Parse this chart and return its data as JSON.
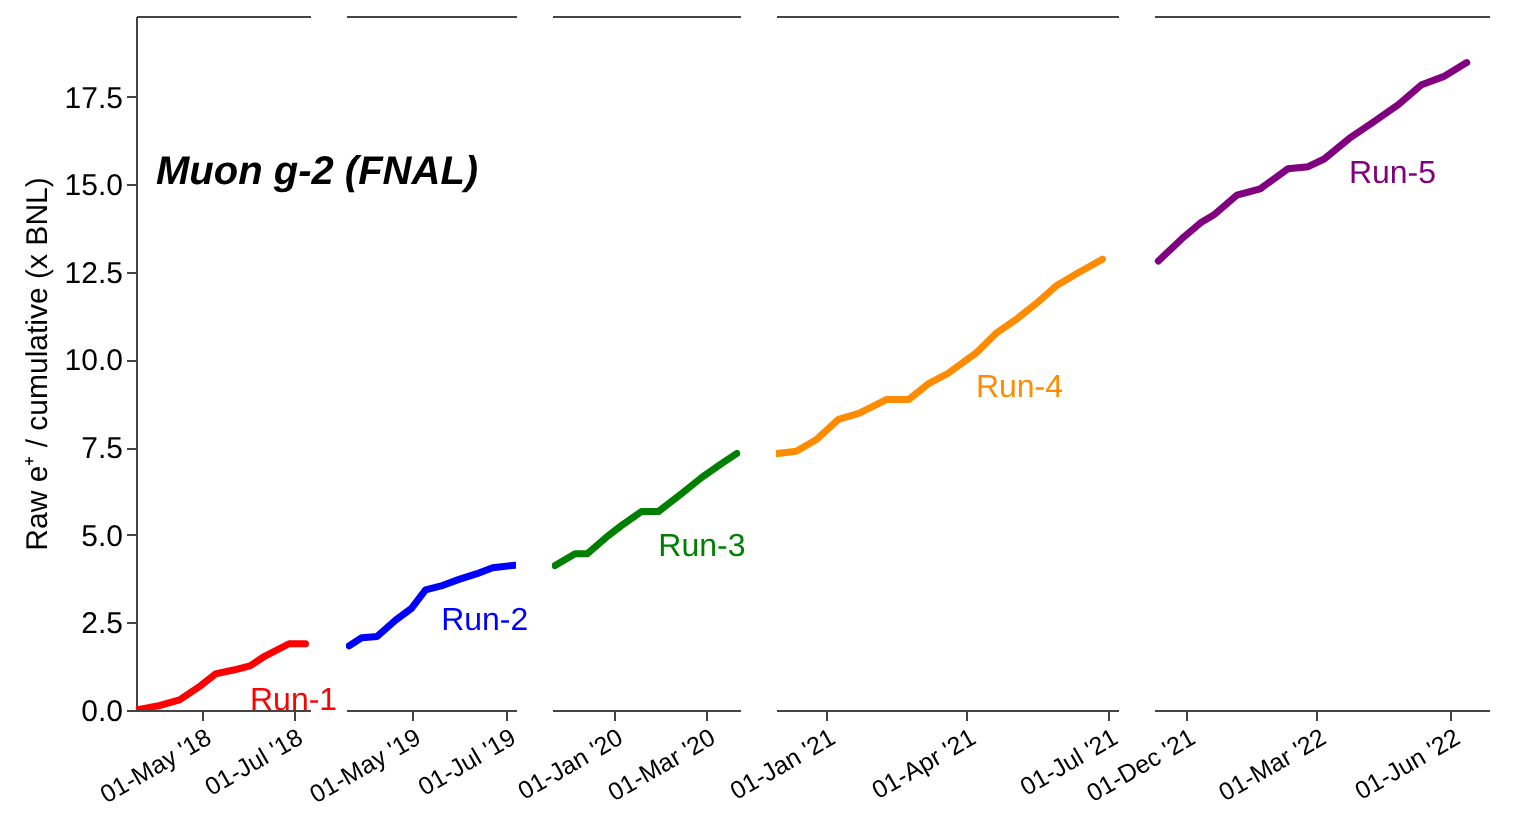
{
  "chart_data": [
    {
      "type": "line",
      "title": "Muon g-2 (FNAL)",
      "ylabel": "Raw e⁺ / cumulative (x BNL)",
      "xlim": [
        "2018-03-18",
        "2018-07-12"
      ],
      "ylim": [
        0,
        19.8
      ],
      "yticks": [
        {
          "value": 0,
          "label": "0.0"
        },
        {
          "value": 2.5,
          "label": "2.5"
        },
        {
          "value": 5,
          "label": "5.0"
        },
        {
          "value": 7.5,
          "label": "7.5"
        },
        {
          "value": 10,
          "label": "10.0"
        },
        {
          "value": 12.5,
          "label": "12.5"
        },
        {
          "value": 15,
          "label": "15.0"
        },
        {
          "value": 17.5,
          "label": "17.5"
        }
      ],
      "xticks": [
        {
          "value": "2018-05-01",
          "label": "01-May '18"
        },
        {
          "value": "2018-07-01",
          "label": "01-Jul '18"
        }
      ],
      "grid": false,
      "line_style": "solid",
      "annotations": [
        "Run-1"
      ],
      "series": [
        {
          "color": "#ff0000",
          "x": [
            "2018-03-18",
            "2018-04-03",
            "2018-04-16",
            "2018-04-30",
            "2018-05-10",
            "2018-05-22",
            "2018-06-02",
            "2018-06-12",
            "2018-06-28",
            "2018-07-09"
          ],
          "values": [
            0,
            0.13,
            0.29,
            0.69,
            1.03,
            1.14,
            1.26,
            1.54,
            1.89,
            1.89
          ]
        }
      ]
    },
    {
      "type": "line",
      "xlim": [
        "2019-03-20",
        "2019-07-07"
      ],
      "ylim": [
        0,
        19.8
      ],
      "xticks": [
        {
          "value": "2019-05-01",
          "label": "01-May '19"
        },
        {
          "value": "2019-07-01",
          "label": "01-Jul '19"
        }
      ],
      "tick_labels": "x",
      "grid": false,
      "line_style": "solid",
      "annotations": [
        "Run-2"
      ],
      "series": [
        {
          "color": "#0000ff",
          "x": [
            "2019-03-22",
            "2019-03-30",
            "2019-04-09",
            "2019-04-21",
            "2019-05-01",
            "2019-05-10",
            "2019-05-20",
            "2019-05-31",
            "2019-06-12",
            "2019-06-22",
            "2019-07-06"
          ],
          "values": [
            1.83,
            2.06,
            2.1,
            2.57,
            2.9,
            3.43,
            3.54,
            3.72,
            3.89,
            4.06,
            4.13
          ]
        }
      ]
    },
    {
      "type": "line",
      "xlim": [
        "2019-11-22",
        "2020-03-23"
      ],
      "ylim": [
        0,
        19.8
      ],
      "xticks": [
        {
          "value": "2020-01-01",
          "label": "01-Jan '20"
        },
        {
          "value": "2020-03-01",
          "label": "01-Mar '20"
        }
      ],
      "tick_labels": "x",
      "grid": false,
      "line_style": "solid",
      "annotations": [
        "Run-3"
      ],
      "series": [
        {
          "color": "#008000",
          "x": [
            "2019-11-24",
            "2019-12-07",
            "2019-12-15",
            "2019-12-27",
            "2020-01-06",
            "2020-01-19",
            "2020-01-30",
            "2020-02-14",
            "2020-02-27",
            "2020-03-11",
            "2020-03-21"
          ],
          "values": [
            4.12,
            4.46,
            4.46,
            4.92,
            5.26,
            5.66,
            5.66,
            6.17,
            6.63,
            7.03,
            7.32
          ]
        }
      ]
    },
    {
      "type": "line",
      "xlim": [
        "2020-11-30",
        "2021-07-07"
      ],
      "ylim": [
        0,
        19.8
      ],
      "xticks": [
        {
          "value": "2021-01-01",
          "label": "01-Jan '21"
        },
        {
          "value": "2021-04-01",
          "label": "01-Apr '21"
        },
        {
          "value": "2021-07-01",
          "label": "01-Jul '21"
        }
      ],
      "tick_labels": "x",
      "grid": false,
      "line_style": "solid",
      "annotations": [
        "Run-4"
      ],
      "series": [
        {
          "color": "#ff8c00",
          "x": [
            "2020-12-01",
            "2020-12-13",
            "2020-12-26",
            "2021-01-09",
            "2021-01-22",
            "2021-02-09",
            "2021-02-23",
            "2021-03-08",
            "2021-03-20",
            "2021-04-07",
            "2021-04-20",
            "2021-05-03",
            "2021-05-16",
            "2021-05-29",
            "2021-06-11",
            "2021-06-27"
          ],
          "values": [
            7.32,
            7.38,
            7.72,
            8.29,
            8.46,
            8.86,
            8.86,
            9.32,
            9.6,
            10.18,
            10.75,
            11.15,
            11.61,
            12.12,
            12.46,
            12.86
          ]
        }
      ]
    },
    {
      "type": "line",
      "xlim": [
        "2021-11-09",
        "2022-06-28"
      ],
      "ylim": [
        0,
        19.8
      ],
      "xticks": [
        {
          "value": "2021-12-01",
          "label": "01-Dec '21"
        },
        {
          "value": "2022-03-01",
          "label": "01-Mar '22"
        },
        {
          "value": "2022-06-01",
          "label": "01-Jun '22"
        }
      ],
      "tick_labels": "x",
      "grid": false,
      "line_style": "solid",
      "annotations": [
        "Run-5"
      ],
      "series": [
        {
          "color": "#800080",
          "x": [
            "2021-11-12",
            "2021-11-28",
            "2021-12-11",
            "2021-12-20",
            "2022-01-05",
            "2022-01-21",
            "2022-02-09",
            "2022-02-23",
            "2022-03-06",
            "2022-03-23",
            "2022-04-08",
            "2022-04-26",
            "2022-05-12",
            "2022-05-27",
            "2022-06-12"
          ],
          "values": [
            12.81,
            13.44,
            13.9,
            14.12,
            14.69,
            14.87,
            15.44,
            15.5,
            15.72,
            16.3,
            16.75,
            17.27,
            17.84,
            18.07,
            18.47
          ]
        }
      ]
    }
  ]
}
